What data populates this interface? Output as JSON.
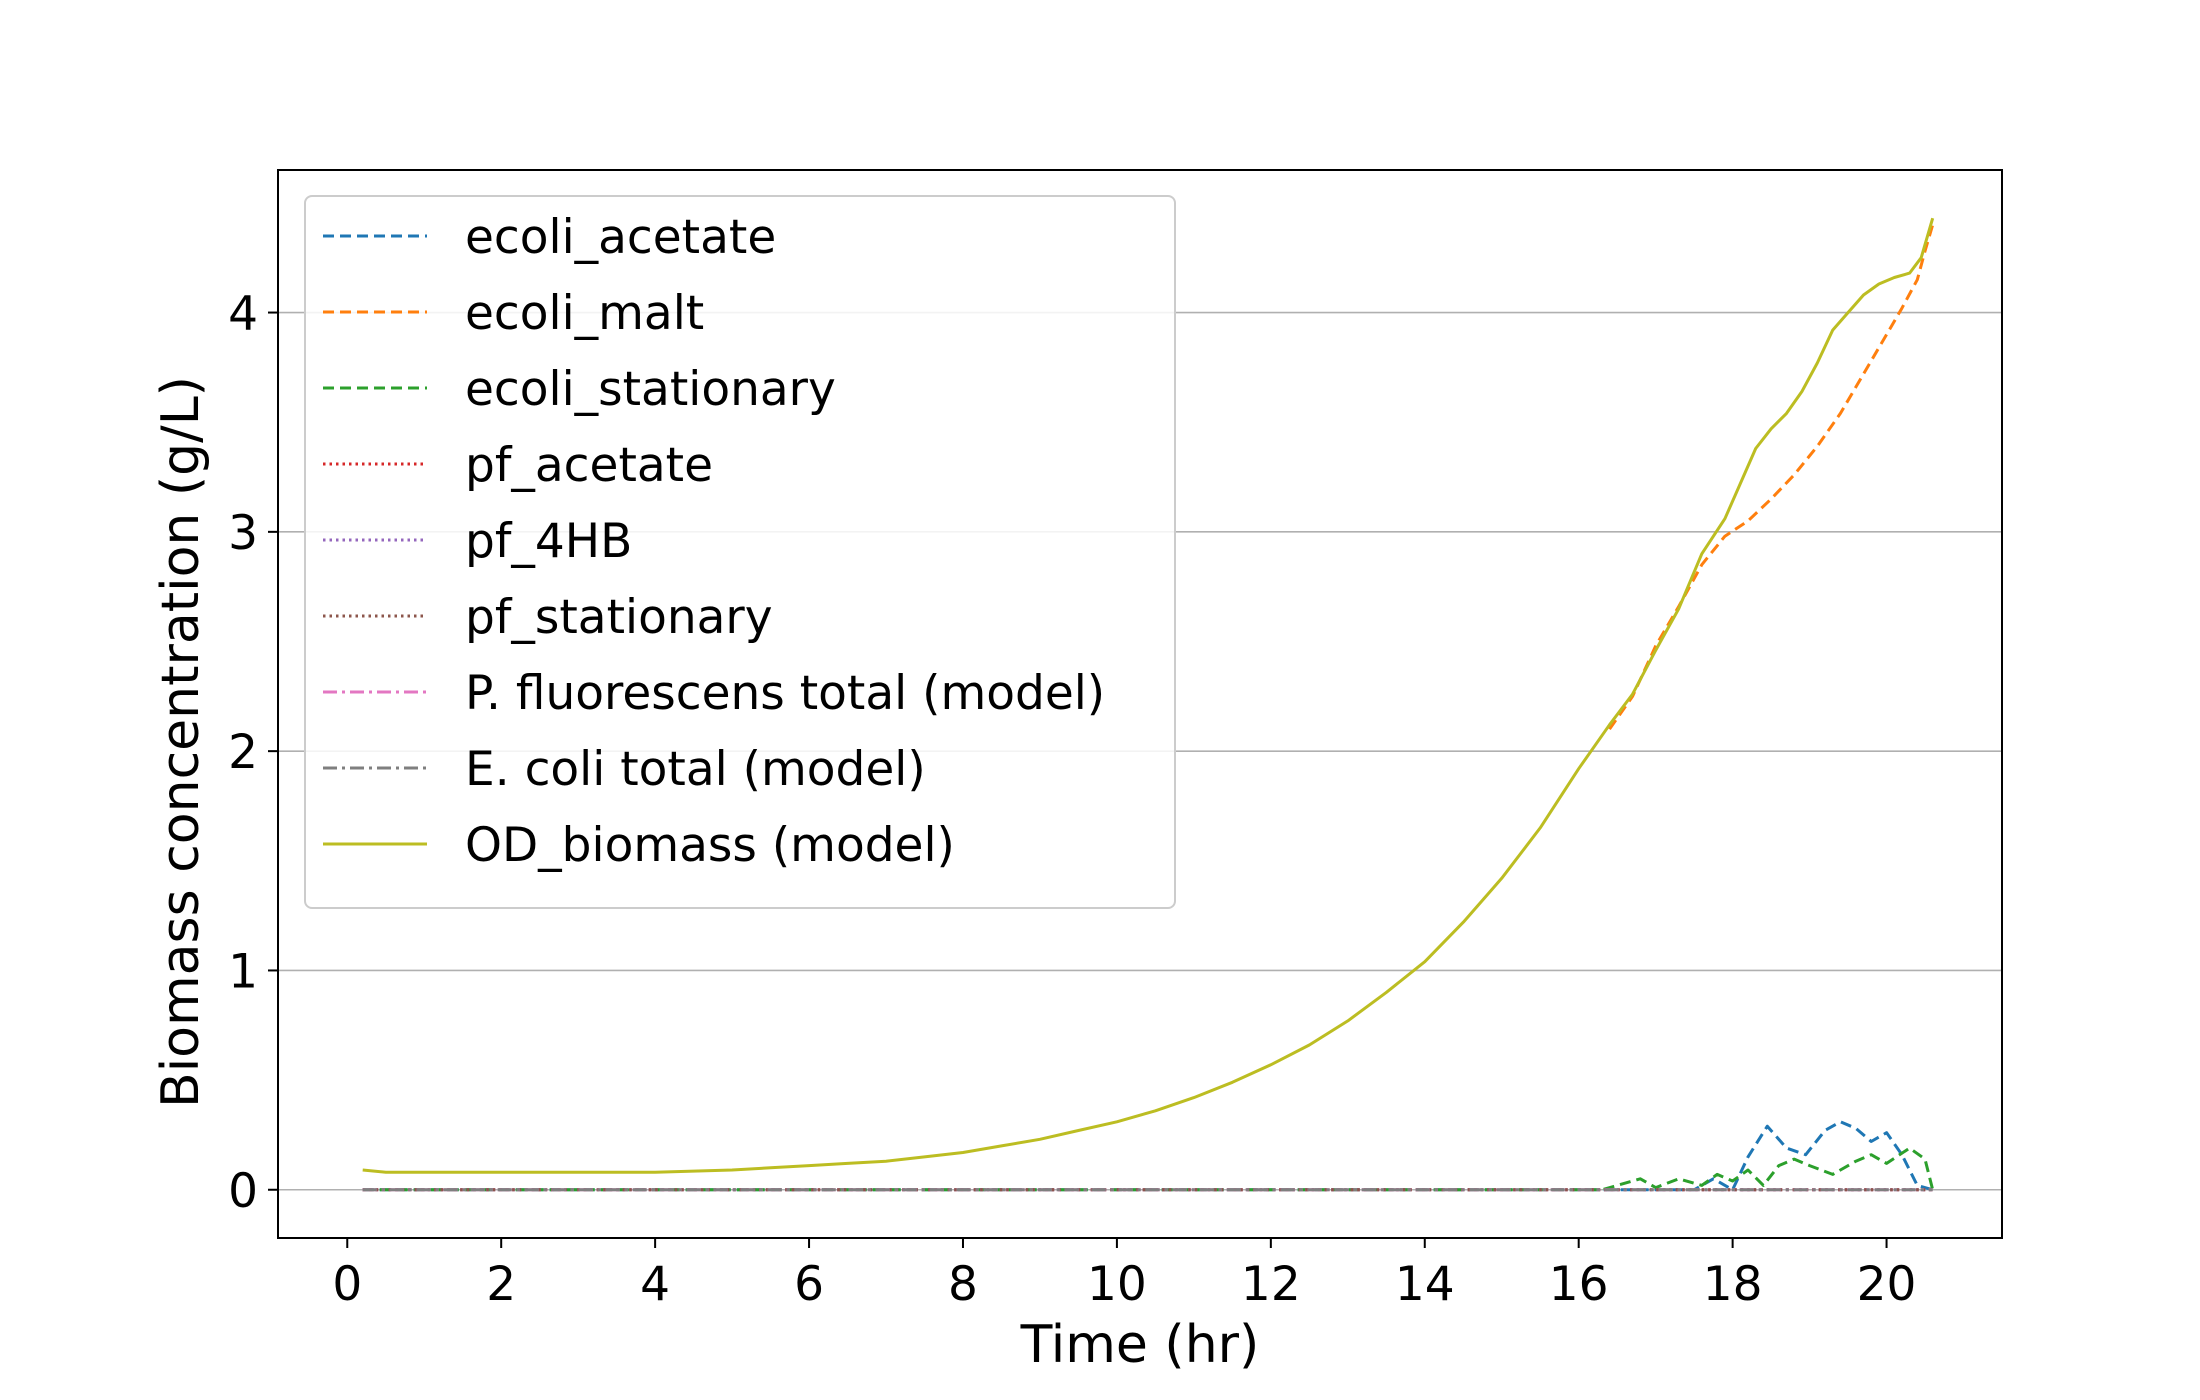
{
  "chart_data": {
    "type": "line",
    "title": "",
    "xlabel": "Time (hr)",
    "ylabel": "Biomass concentration (g/L)",
    "xlim": [
      -0.9,
      21.5
    ],
    "ylim": [
      -0.22,
      4.65
    ],
    "xticks": [
      0,
      2,
      4,
      6,
      8,
      10,
      12,
      14,
      16,
      18,
      20
    ],
    "yticks": [
      0,
      1,
      2,
      3,
      4
    ],
    "grid": "horizontal",
    "legend_position": "upper-left",
    "series": [
      {
        "name": "ecoli_acetate",
        "color": "#1f77b4",
        "style": "dashed",
        "x": [
          0.2,
          16.0,
          17.5,
          17.75,
          18.0,
          18.2,
          18.45,
          18.7,
          18.95,
          19.2,
          19.4,
          19.6,
          19.8,
          20.0,
          20.2,
          20.4,
          20.6
        ],
        "y": [
          0,
          0,
          0,
          0.05,
          0.0,
          0.15,
          0.29,
          0.19,
          0.16,
          0.27,
          0.31,
          0.28,
          0.22,
          0.26,
          0.16,
          0.02,
          0.0
        ]
      },
      {
        "name": "ecoli_malt",
        "color": "#ff7f0e",
        "style": "dashed",
        "x": [
          16.4,
          16.7,
          17.0,
          17.3,
          17.6,
          17.9,
          18.2,
          18.5,
          18.8,
          19.1,
          19.4,
          19.7,
          20.0,
          20.2,
          20.4,
          20.5,
          20.6
        ],
        "y": [
          2.1,
          2.25,
          2.48,
          2.66,
          2.85,
          2.98,
          3.05,
          3.15,
          3.26,
          3.39,
          3.54,
          3.72,
          3.9,
          4.02,
          4.15,
          4.28,
          4.4
        ]
      },
      {
        "name": "ecoli_stationary",
        "color": "#2ca02c",
        "style": "dashed",
        "x": [
          0.2,
          16.3,
          16.6,
          16.8,
          17.0,
          17.3,
          17.6,
          17.8,
          18.0,
          18.2,
          18.4,
          18.6,
          18.8,
          19.0,
          19.3,
          19.6,
          19.8,
          20.0,
          20.3,
          20.5,
          20.6
        ],
        "y": [
          0,
          0,
          0.03,
          0.05,
          0.01,
          0.05,
          0.02,
          0.07,
          0.04,
          0.09,
          0.02,
          0.11,
          0.14,
          0.11,
          0.07,
          0.13,
          0.16,
          0.12,
          0.19,
          0.14,
          0.0
        ]
      },
      {
        "name": "pf_acetate",
        "color": "#d62728",
        "style": "dotted",
        "x": [
          0.2,
          20.6
        ],
        "y": [
          0,
          0
        ]
      },
      {
        "name": "pf_4HB",
        "color": "#9467bd",
        "style": "dotted",
        "x": [
          0.2,
          20.6
        ],
        "y": [
          0,
          0
        ]
      },
      {
        "name": "pf_stationary",
        "color": "#8c564b",
        "style": "dotted",
        "x": [
          0.2,
          20.6
        ],
        "y": [
          0,
          0
        ]
      },
      {
        "name": "P. fluorescens total (model)",
        "color": "#e377c2",
        "style": "dashdot",
        "x": [
          0.2,
          20.6
        ],
        "y": [
          0,
          0
        ]
      },
      {
        "name": "E. coli total (model)",
        "color": "#7f7f7f",
        "style": "dashdot",
        "x": [
          0.2,
          20.6
        ],
        "y": [
          0,
          0
        ]
      },
      {
        "name": "OD_biomass (model)",
        "color": "#bcbd22",
        "style": "solid",
        "x": [
          0.2,
          0.5,
          1.0,
          2.0,
          3.0,
          4.0,
          5.0,
          5.5,
          6.0,
          6.5,
          7.0,
          7.5,
          8.0,
          8.5,
          9.0,
          9.5,
          10.0,
          10.5,
          11.0,
          11.5,
          12.0,
          12.5,
          13.0,
          13.5,
          14.0,
          14.5,
          15.0,
          15.5,
          16.0,
          16.4,
          16.7,
          17.0,
          17.3,
          17.6,
          17.9,
          18.1,
          18.3,
          18.5,
          18.7,
          18.9,
          19.1,
          19.3,
          19.5,
          19.7,
          19.9,
          20.1,
          20.3,
          20.45,
          20.6
        ],
        "y": [
          0.09,
          0.08,
          0.08,
          0.08,
          0.08,
          0.08,
          0.09,
          0.1,
          0.11,
          0.12,
          0.13,
          0.15,
          0.17,
          0.2,
          0.23,
          0.27,
          0.31,
          0.36,
          0.42,
          0.49,
          0.57,
          0.66,
          0.77,
          0.9,
          1.04,
          1.22,
          1.42,
          1.65,
          1.92,
          2.12,
          2.26,
          2.46,
          2.65,
          2.9,
          3.06,
          3.22,
          3.38,
          3.47,
          3.54,
          3.64,
          3.77,
          3.92,
          4.0,
          4.08,
          4.13,
          4.16,
          4.18,
          4.25,
          4.43
        ]
      }
    ]
  }
}
